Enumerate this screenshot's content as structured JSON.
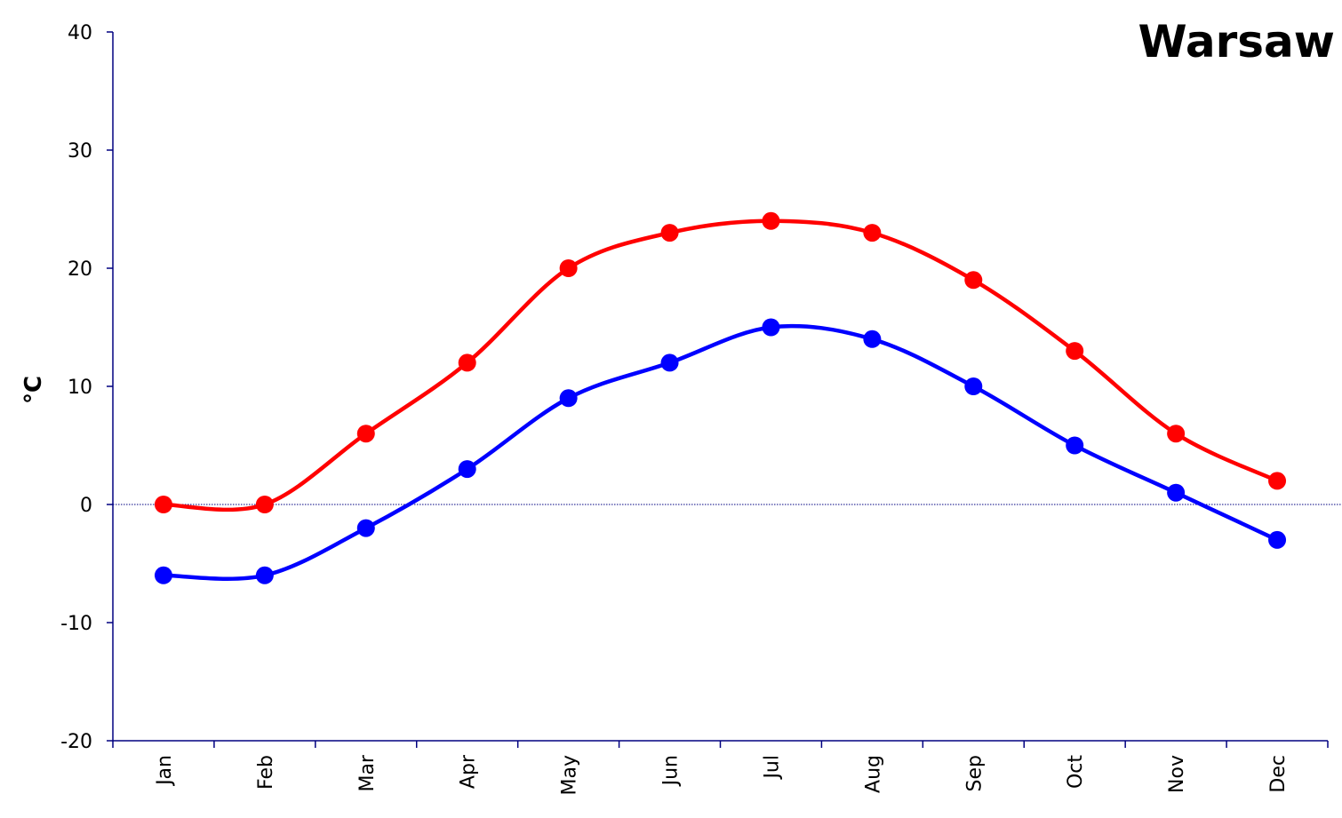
{
  "chart_data": {
    "type": "line",
    "title": "Warsaw",
    "xlabel": "",
    "ylabel": "°C",
    "categories": [
      "Jan",
      "Feb",
      "Mar",
      "Apr",
      "May",
      "Jun",
      "Jul",
      "Aug",
      "Sep",
      "Oct",
      "Nov",
      "Dec"
    ],
    "ylim": [
      -20,
      40
    ],
    "yticks": [
      "-20",
      "-10",
      "0",
      "10",
      "20",
      "30",
      "40"
    ],
    "grid": false,
    "legend": "none",
    "series": [
      {
        "color": "#ff0000",
        "values": [
          0,
          0,
          6,
          12,
          20,
          23,
          24,
          23,
          19,
          13,
          6,
          2
        ]
      },
      {
        "color": "#0000ff",
        "values": [
          -6,
          -6,
          -2,
          3,
          9,
          12,
          15,
          14,
          10,
          5,
          1,
          -3
        ]
      }
    ],
    "zero_line_color": "#000080",
    "axis_color": "#000080"
  }
}
